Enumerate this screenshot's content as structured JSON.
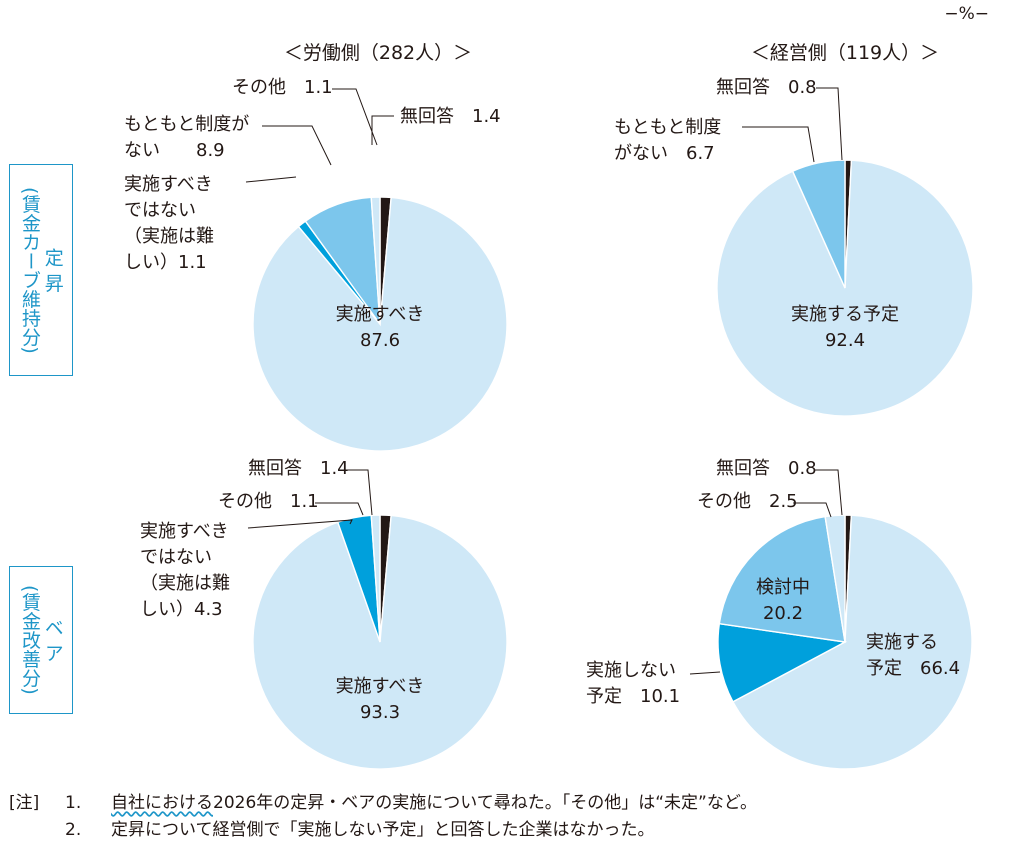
{
  "unit": "−%−",
  "columns": [
    "＜労働側（282人）＞",
    "＜経営側（119人）＞"
  ],
  "rows": [
    {
      "label": "(賃金カーブ維持分)",
      "sub": "定 昇"
    },
    {
      "label": "(賃金改善分)",
      "sub": "ベ ア"
    }
  ],
  "colors": {
    "light_blue": "#cfe8f7",
    "mid_blue": "#7cc6ec",
    "deep_blue": "#00a0dc",
    "black": "#231815",
    "frame": "#1e96c8"
  },
  "chart_data": [
    {
      "type": "pie",
      "title": "定昇 − 労働側（282人）",
      "slices": [
        {
          "label": "無回答",
          "value": 1.4,
          "color": "#231815",
          "label_lines": [
            "無回答　1.4"
          ]
        },
        {
          "label": "実施すべき",
          "value": 87.6,
          "color": "#cfe8f7",
          "label_lines": [
            "実施すべき",
            "87.6"
          ]
        },
        {
          "label": "実施すべきではない（実施は難しい）",
          "value": 1.1,
          "color": "#00a0dc",
          "label_lines": [
            "実施すべき",
            "ではない",
            "（実施は難",
            "しい）1.1"
          ]
        },
        {
          "label": "もともと制度がない",
          "value": 8.9,
          "color": "#7cc6ec",
          "label_lines": [
            "もともと制度が",
            "ない　　8.9"
          ]
        },
        {
          "label": "その他",
          "value": 1.1,
          "color": "#cfe8f7",
          "label_lines": [
            "その他　1.1"
          ]
        }
      ]
    },
    {
      "type": "pie",
      "title": "定昇 − 経営側（119人）",
      "slices": [
        {
          "label": "無回答",
          "value": 0.8,
          "color": "#231815",
          "label_lines": [
            "無回答　0.8"
          ]
        },
        {
          "label": "実施する予定",
          "value": 92.4,
          "color": "#cfe8f7",
          "label_lines": [
            "実施する予定",
            "92.4"
          ]
        },
        {
          "label": "もともと制度がない",
          "value": 6.7,
          "color": "#7cc6ec",
          "label_lines": [
            "もともと制度",
            "がない　6.7"
          ]
        }
      ]
    },
    {
      "type": "pie",
      "title": "ベア − 労働側（282人）",
      "slices": [
        {
          "label": "無回答",
          "value": 1.4,
          "color": "#231815",
          "label_lines": [
            "無回答　1.4"
          ]
        },
        {
          "label": "実施すべき",
          "value": 93.3,
          "color": "#cfe8f7",
          "label_lines": [
            "実施すべき",
            "93.3"
          ]
        },
        {
          "label": "実施すべきではない（実施は難しい）",
          "value": 4.3,
          "color": "#00a0dc",
          "label_lines": [
            "実施すべき",
            "ではない",
            "（実施は難",
            "しい）4.3"
          ]
        },
        {
          "label": "その他",
          "value": 1.1,
          "color": "#cfe8f7",
          "label_lines": [
            "その他　1.1"
          ]
        }
      ]
    },
    {
      "type": "pie",
      "title": "ベア − 経営側（119人）",
      "slices": [
        {
          "label": "無回答",
          "value": 0.8,
          "color": "#231815",
          "label_lines": [
            "無回答　0.8"
          ]
        },
        {
          "label": "実施する予定",
          "value": 66.4,
          "color": "#cfe8f7",
          "label_lines": [
            "実施する",
            "予定　66.4"
          ]
        },
        {
          "label": "実施しない予定",
          "value": 10.1,
          "color": "#00a0dc",
          "label_lines": [
            "実施しない",
            "予定　10.1"
          ]
        },
        {
          "label": "検討中",
          "value": 20.2,
          "color": "#7cc6ec",
          "label_lines": [
            "検討中",
            "20.2"
          ]
        },
        {
          "label": "その他",
          "value": 2.5,
          "color": "#cfe8f7",
          "label_lines": [
            "その他　2.5"
          ]
        }
      ]
    }
  ],
  "notes": {
    "tag": "[注]",
    "items": [
      {
        "num": "1.",
        "pre": "自社における",
        "text": "2026年の定昇・ベアの実施について尋ねた。「その他」は“未定”など。"
      },
      {
        "num": "2.",
        "pre": "",
        "text": "定昇について経営側で「実施しない予定」と回答した企業はなかった。"
      }
    ]
  }
}
